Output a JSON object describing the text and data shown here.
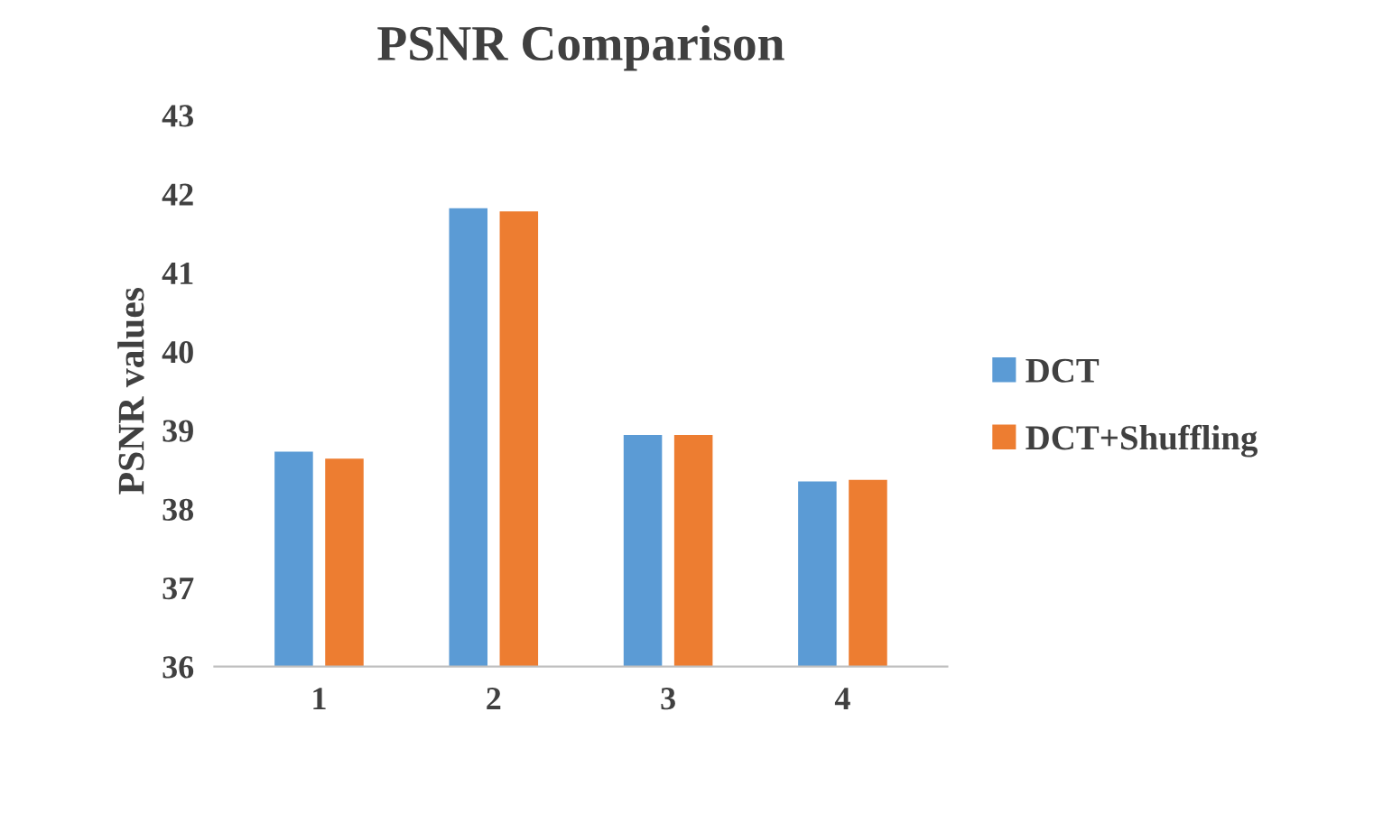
{
  "chart_data": {
    "type": "bar",
    "title": "PSNR Comparison",
    "ylabel": "PSNR values",
    "categories": [
      "1",
      "2",
      "3",
      "4"
    ],
    "series": [
      {
        "name": "DCT",
        "color": "#5b9bd5",
        "values": [
          38.73,
          41.82,
          38.94,
          38.35
        ]
      },
      {
        "name": "DCT+Shuffling",
        "color": "#ed7d31",
        "values": [
          38.64,
          41.78,
          38.94,
          38.37
        ]
      }
    ],
    "ylim": [
      36,
      43
    ],
    "yticks": [
      36,
      37,
      38,
      39,
      40,
      41,
      42,
      43
    ],
    "grid": false,
    "legend": "right"
  }
}
